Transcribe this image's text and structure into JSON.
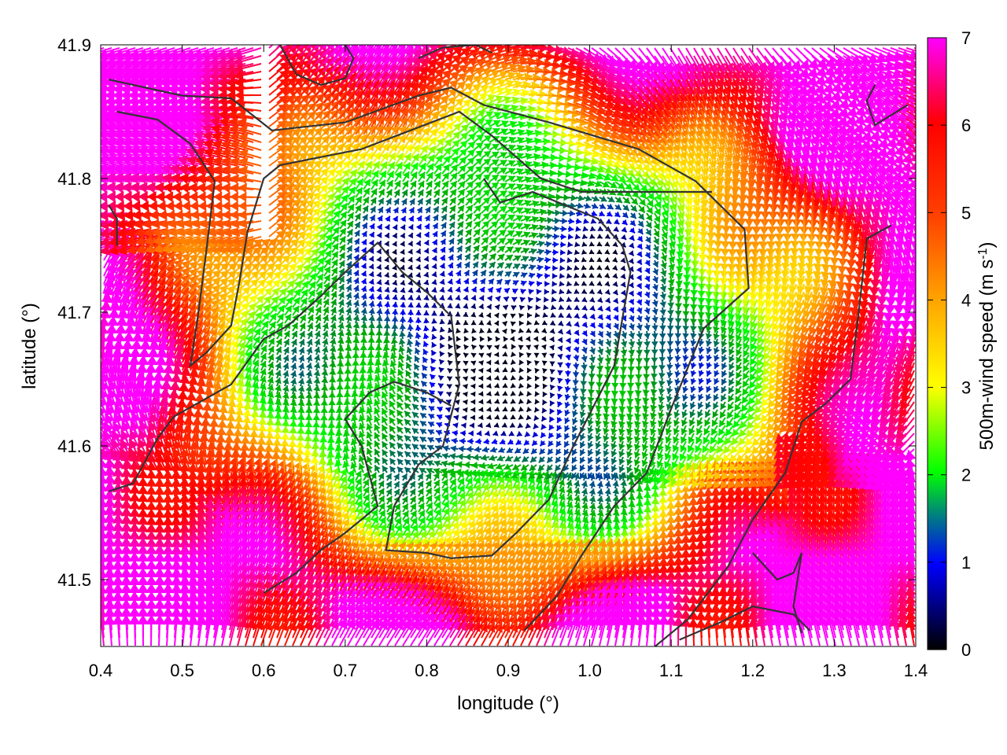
{
  "chart_data": {
    "type": "vector-field",
    "xlabel": "longitude (°)",
    "ylabel": "latitude (°)",
    "xlim": [
      0.4,
      1.4
    ],
    "ylim": [
      41.45,
      41.9
    ],
    "x_ticks": [
      "0.4",
      "0.5",
      "0.6",
      "0.7",
      "0.8",
      "0.9",
      "1.0",
      "1.1",
      "1.2",
      "1.3",
      "1.4"
    ],
    "y_ticks": [
      "41.5",
      "41.6",
      "41.7",
      "41.8",
      "41.9"
    ],
    "colorbar": {
      "label_main": "500m-wind speed (m s",
      "label_sup": "-1",
      "label_end": ")",
      "range": [
        0,
        7
      ],
      "ticks": [
        "0",
        "1",
        "2",
        "3",
        "4",
        "5",
        "6",
        "7"
      ],
      "colormap": [
        "#000000",
        "#0000ff",
        "#00aa00",
        "#00ff00",
        "#ffff00",
        "#ffa500",
        "#ff4000",
        "#ff0000",
        "#ff00ff"
      ]
    },
    "grid": false,
    "contour_color": "#333333",
    "annotation": "wind vectors colored by speed with terrain contours"
  }
}
